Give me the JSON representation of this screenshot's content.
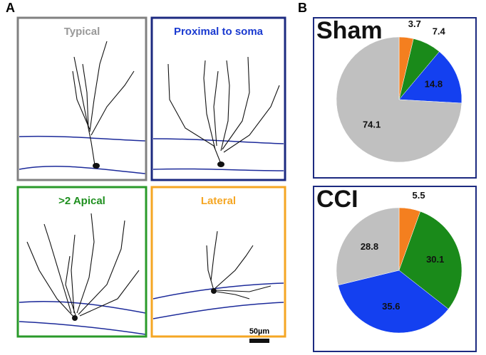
{
  "panel_labels": [
    "A",
    "B"
  ],
  "neuron_panels": [
    {
      "title": "Typical",
      "color": "#999999",
      "box_color": "#808080"
    },
    {
      "title": "Proximal to soma",
      "color": "#1a3ad0",
      "box_color": "#1c2a80"
    },
    {
      "title": ">2 Apical",
      "color": "#1f8f1f",
      "box_color": "#2a9a2a"
    },
    {
      "title": "Lateral",
      "color": "#f5a623",
      "box_color": "#f5a623"
    }
  ],
  "scale_bar": "50µm",
  "chart_data": [
    {
      "type": "pie",
      "title": "Sham",
      "values": [
        3.7,
        7.4,
        14.8,
        74.1
      ],
      "colors": [
        "#f47f1f",
        "#1a8a1a",
        "#1440f0",
        "#c0c0c0"
      ],
      "box_color": "#1c2a80"
    },
    {
      "type": "pie",
      "title": "CCI",
      "values": [
        5.5,
        30.1,
        35.6,
        28.8
      ],
      "colors": [
        "#f47f1f",
        "#1a8a1a",
        "#1440f0",
        "#c0c0c0"
      ],
      "box_color": "#1c2a80"
    }
  ]
}
